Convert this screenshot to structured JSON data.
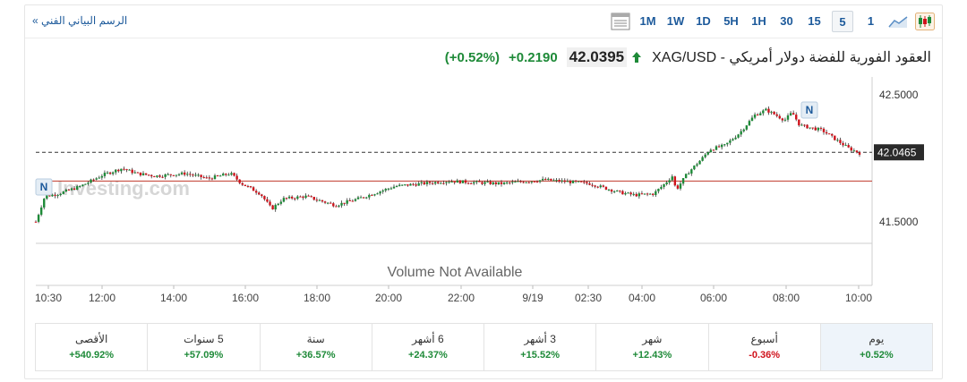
{
  "toolbar": {
    "tech_link": "الرسم البياني الفني »",
    "timeframes": [
      "1",
      "5",
      "15",
      "30",
      "1H",
      "5H",
      "1D",
      "1W",
      "1M"
    ],
    "selected_timeframe": "5",
    "icons": [
      "candlestick-chart-icon",
      "area-chart-icon",
      "table-view-icon"
    ]
  },
  "header": {
    "title": "XAG/USD - العقود الفورية للفضة دولار أمريكي",
    "price": "42.0395",
    "change": "+0.2190",
    "change_pct": "(+0.52%)",
    "direction": "up"
  },
  "chart": {
    "volume_text": "Volume Not Available",
    "watermark": "Investing.com",
    "news_marker": "N",
    "current_price_label": "42.0465",
    "colors": {
      "up": "#1e8a38",
      "down": "#d0121b",
      "price_line": "#333333",
      "ref_line": "#c0392b"
    }
  },
  "chart_data": {
    "type": "candlestick",
    "x_tick_labels": [
      "10:30",
      "12:00",
      "14:00",
      "16:00",
      "18:00",
      "20:00",
      "22:00",
      "9/19",
      "02:30",
      "04:00",
      "06:00",
      "08:00",
      "10:00"
    ],
    "y_tick_labels": [
      "42.5000",
      "41.5000"
    ],
    "ylim": [
      41.33,
      42.64
    ],
    "previous_close": 41.82,
    "last_price": 42.0465,
    "close_path": [
      [
        0,
        41.5
      ],
      [
        0.012,
        41.7
      ],
      [
        0.03,
        41.72
      ],
      [
        0.06,
        41.78
      ],
      [
        0.09,
        41.87
      ],
      [
        0.115,
        41.92
      ],
      [
        0.135,
        41.88
      ],
      [
        0.16,
        41.86
      ],
      [
        0.2,
        41.88
      ],
      [
        0.23,
        41.84
      ],
      [
        0.26,
        41.88
      ],
      [
        0.275,
        41.8
      ],
      [
        0.3,
        41.72
      ],
      [
        0.315,
        41.6
      ],
      [
        0.33,
        41.68
      ],
      [
        0.36,
        41.7
      ],
      [
        0.4,
        41.63
      ],
      [
        0.43,
        41.68
      ],
      [
        0.48,
        41.78
      ],
      [
        0.55,
        41.82
      ],
      [
        0.62,
        41.8
      ],
      [
        0.68,
        41.83
      ],
      [
        0.74,
        41.8
      ],
      [
        0.78,
        41.73
      ],
      [
        0.8,
        41.71
      ],
      [
        0.825,
        41.72
      ],
      [
        0.84,
        41.8
      ],
      [
        0.85,
        41.86
      ],
      [
        0.855,
        41.75
      ],
      [
        0.87,
        41.88
      ],
      [
        0.89,
        42.0
      ],
      [
        0.9,
        42.07
      ],
      [
        0.92,
        42.1
      ],
      [
        0.94,
        42.2
      ],
      [
        0.96,
        42.34
      ],
      [
        0.975,
        42.38
      ],
      [
        0.985,
        42.35
      ],
      [
        1.0,
        42.3
      ],
      [
        1.01,
        42.36
      ],
      [
        1.02,
        42.26
      ],
      [
        1.05,
        42.22
      ],
      [
        1.07,
        42.14
      ],
      [
        1.085,
        42.08
      ],
      [
        1.1,
        42.04
      ]
    ]
  },
  "periods": [
    {
      "label": "يوم",
      "value": "+0.52%",
      "sign": "pos",
      "selected": true
    },
    {
      "label": "أسبوع",
      "value": "-0.36%",
      "sign": "neg",
      "selected": false
    },
    {
      "label": "شهر",
      "value": "+12.43%",
      "sign": "pos",
      "selected": false
    },
    {
      "label": "3 أشهر",
      "value": "+15.52%",
      "sign": "pos",
      "selected": false
    },
    {
      "label": "6 أشهر",
      "value": "+24.37%",
      "sign": "pos",
      "selected": false
    },
    {
      "label": "سنة",
      "value": "+36.57%",
      "sign": "pos",
      "selected": false
    },
    {
      "label": "5 سنوات",
      "value": "+57.09%",
      "sign": "pos",
      "selected": false
    },
    {
      "label": "الأقصى",
      "value": "+540.92%",
      "sign": "pos",
      "selected": false
    }
  ]
}
